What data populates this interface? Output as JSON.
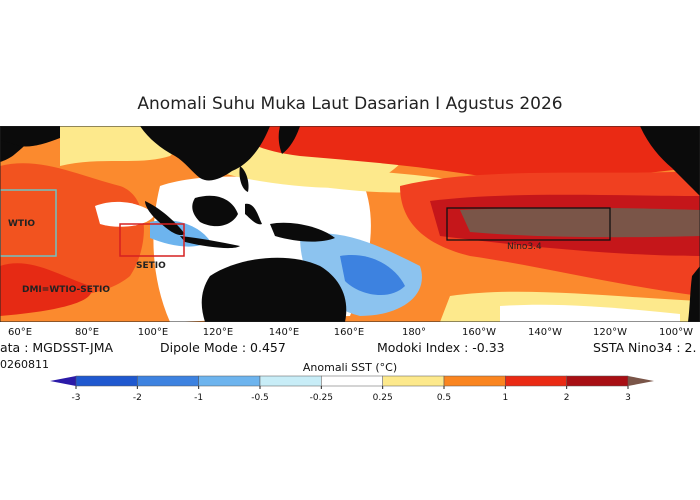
{
  "title": "Anomali Suhu Muka Laut Dasarian I Agustus 2026",
  "regions": {
    "wtio": "WTIO",
    "setio": "SETIO",
    "dmi_formula": "DMI=WTIO-SETIO",
    "nino": "Nino3.4"
  },
  "longitudes": [
    "60°E",
    "80°E",
    "100°E",
    "120°E",
    "140°E",
    "160°E",
    "180°",
    "160°W",
    "140°W",
    "120°W",
    "100°W"
  ],
  "info": {
    "data_source": "ata : MGDSST-JMA",
    "date": "0260811",
    "dipole_mode": "Dipole Mode : 0.457",
    "modoki_index": "Modoki Index : -0.33",
    "ssta_nino34": "SSTA Nino34 : 2."
  },
  "colorbar": {
    "label": "Anomali SST (°C)",
    "ticks": [
      "-3",
      "-2",
      "-1",
      "-0.5",
      "-0.25",
      "0.25",
      "0.5",
      "1",
      "2",
      "3"
    ],
    "colors": [
      "#1f58cf",
      "#3d82e0",
      "#6db4ee",
      "#c8edf7",
      "#ffffff",
      "#fde98c",
      "#fa8520",
      "#ea2a14",
      "#a80f14"
    ],
    "under_color": "#2b1aa8",
    "over_color": "#7a5548"
  },
  "map_colors": {
    "land": "#0b0b0b",
    "strong_warm": "#f04020",
    "warm": "#fb8a2e",
    "light_warm": "#fde98c",
    "neutral": "#ffffff",
    "cool": "#8cc3ef",
    "nino_core": "#7a5548"
  }
}
